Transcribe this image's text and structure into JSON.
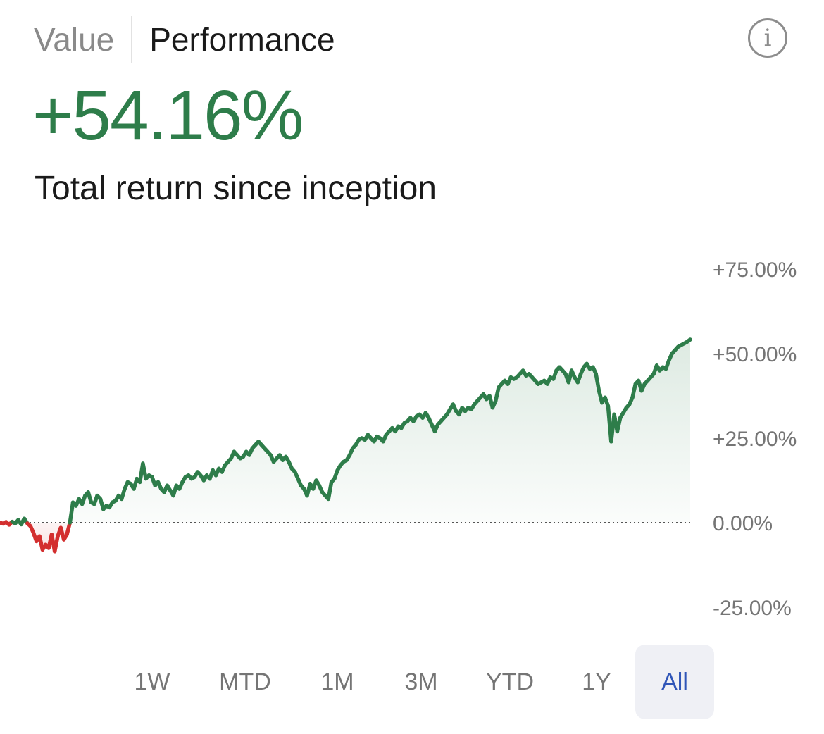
{
  "tabs": [
    {
      "label": "Value",
      "active": false
    },
    {
      "label": "Performance",
      "active": true
    }
  ],
  "info_icon": {
    "name": "info-icon",
    "glyph": "i"
  },
  "summary": {
    "value": "+54.16%",
    "caption": "Total return since inception"
  },
  "ranges": [
    {
      "label": "1W"
    },
    {
      "label": "MTD"
    },
    {
      "label": "1M"
    },
    {
      "label": "3M"
    },
    {
      "label": "YTD"
    },
    {
      "label": "1Y"
    },
    {
      "label": "All"
    }
  ],
  "selected_range": "All",
  "colors": {
    "positive": "#2e7d4a",
    "negative": "#d32f2f",
    "selected_range": "#2f55b8",
    "axis_text": "#757575"
  },
  "chart_data": {
    "type": "line",
    "yaxis_ticks": [
      "+75.00%",
      "+50.00%",
      "+25.00%",
      "0.00%",
      "-25.00%"
    ],
    "ylim": [
      -25,
      75
    ],
    "baseline": 0,
    "baseline_style": "dotted",
    "y_axis_side": "right",
    "grid": false,
    "fill": "area",
    "series": [
      {
        "values": [
          0,
          -0.3,
          0.2,
          -0.6,
          0.3,
          -0.2,
          0.8,
          -0.5,
          1.2,
          -0.2,
          -1,
          -3,
          -5.5,
          -4,
          -8,
          -6.5,
          -7.5,
          -3.5,
          -8.5,
          -4,
          -1.5,
          -5,
          -3.5,
          0,
          6,
          5,
          7,
          5.5,
          8,
          9,
          6,
          5.5,
          8,
          7,
          4,
          5,
          4.5,
          6,
          6.5,
          8,
          7,
          10,
          12,
          11.5,
          10,
          13,
          12,
          17.5,
          13,
          14,
          13.5,
          11,
          12,
          10,
          9,
          11,
          9.5,
          8,
          11,
          10,
          12,
          13.5,
          14,
          13,
          13.5,
          15,
          14,
          12.5,
          14,
          13,
          15.5,
          14,
          16,
          15,
          17,
          18,
          19,
          21,
          20,
          19,
          19.5,
          21,
          20,
          22,
          23,
          24,
          23,
          22,
          21,
          20,
          18,
          19,
          20,
          18.5,
          19.5,
          18,
          16,
          15,
          13,
          11,
          10,
          8,
          11.5,
          10,
          12.5,
          11,
          9,
          8,
          7,
          12,
          13,
          15.5,
          17,
          18,
          18.5,
          20,
          22,
          23,
          24.5,
          25,
          24.5,
          26,
          25,
          24,
          25.5,
          25,
          24,
          26,
          27,
          28,
          27,
          28.5,
          28,
          29.5,
          30,
          31,
          30,
          31.5,
          32,
          31,
          32.5,
          31,
          29,
          27,
          29,
          30,
          31,
          32,
          33.5,
          35,
          33,
          32,
          34,
          33,
          34,
          33.5,
          35,
          36,
          37,
          38,
          36.5,
          37.5,
          34,
          36,
          40,
          41,
          42,
          41,
          43,
          42.5,
          43,
          44,
          45,
          43.5,
          44,
          43,
          42,
          41,
          41.5,
          42,
          41,
          43,
          42.5,
          45,
          46,
          45,
          44,
          41.5,
          45,
          43,
          41.5,
          44,
          46,
          47,
          45.5,
          46,
          44,
          39,
          35.5,
          37,
          34.5,
          24,
          32,
          27,
          31,
          32.5,
          34,
          35,
          37,
          41,
          42,
          39,
          41,
          42,
          43,
          44,
          46.5,
          45,
          46,
          45.5,
          48,
          50,
          51,
          52,
          52.5,
          53,
          53.5,
          54.16
        ]
      }
    ]
  }
}
